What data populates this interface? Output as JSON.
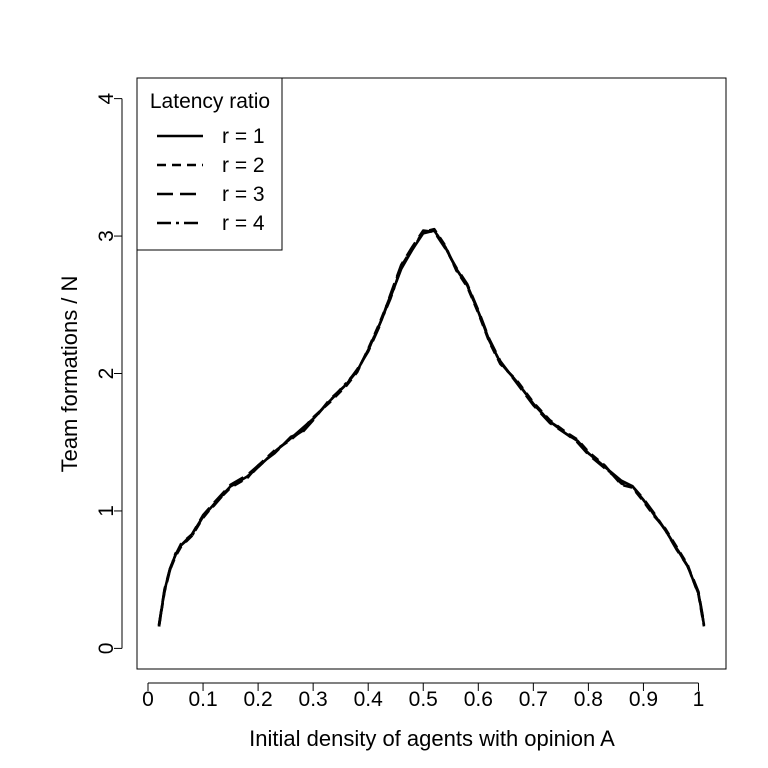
{
  "chart_data": {
    "type": "line",
    "title": "",
    "xlabel": "Initial density of agents with opinion A",
    "ylabel": "Team formations / N",
    "xlim": [
      -0.02,
      1.05
    ],
    "ylim": [
      -0.15,
      4.15
    ],
    "xticks": [
      0,
      0.1,
      0.2,
      0.3,
      0.4,
      0.5,
      0.6,
      0.7,
      0.8,
      0.9,
      1
    ],
    "xtick_labels": [
      "0",
      "0.1",
      "0.2",
      "0.3",
      "0.4",
      "0.5",
      "0.6",
      "0.7",
      "0.8",
      "0.9",
      "1"
    ],
    "yticks": [
      0,
      1,
      2,
      3,
      4
    ],
    "ytick_labels": [
      "0",
      "1",
      "2",
      "3",
      "4"
    ],
    "grid": false,
    "legend": {
      "title": "Latency ratio",
      "position": "top-left",
      "entries": [
        "r = 1",
        "r = 2",
        "r = 3",
        "r = 4"
      ]
    },
    "x": [
      0.02,
      0.03,
      0.04,
      0.05,
      0.06,
      0.08,
      0.1,
      0.12,
      0.15,
      0.18,
      0.2,
      0.23,
      0.26,
      0.28,
      0.3,
      0.33,
      0.36,
      0.38,
      0.4,
      0.42,
      0.44,
      0.46,
      0.48,
      0.5,
      0.52,
      0.54,
      0.56,
      0.58,
      0.6,
      0.62,
      0.64,
      0.67,
      0.7,
      0.73,
      0.76,
      0.78,
      0.8,
      0.83,
      0.86,
      0.88,
      0.9,
      0.92,
      0.94,
      0.96,
      0.98,
      0.99,
      1.0,
      1.01
    ],
    "series": [
      {
        "name": "r = 1",
        "dash": "solid",
        "values": [
          0.17,
          0.42,
          0.58,
          0.68,
          0.75,
          0.83,
          0.96,
          1.05,
          1.18,
          1.25,
          1.32,
          1.43,
          1.53,
          1.6,
          1.67,
          1.8,
          1.92,
          2.02,
          2.17,
          2.35,
          2.55,
          2.76,
          2.9,
          3.02,
          3.04,
          2.92,
          2.76,
          2.64,
          2.45,
          2.24,
          2.08,
          1.94,
          1.78,
          1.65,
          1.56,
          1.51,
          1.42,
          1.32,
          1.22,
          1.18,
          1.08,
          0.97,
          0.86,
          0.73,
          0.6,
          0.5,
          0.4,
          0.17
        ]
      },
      {
        "name": "r = 2",
        "dash": "short-dash",
        "values": [
          0.16,
          0.41,
          0.57,
          0.67,
          0.74,
          0.82,
          0.95,
          1.05,
          1.17,
          1.24,
          1.33,
          1.44,
          1.52,
          1.59,
          1.68,
          1.79,
          1.91,
          2.01,
          2.18,
          2.36,
          2.56,
          2.78,
          2.91,
          3.03,
          3.05,
          2.93,
          2.75,
          2.63,
          2.44,
          2.23,
          2.07,
          1.95,
          1.79,
          1.66,
          1.57,
          1.52,
          1.43,
          1.33,
          1.19,
          1.17,
          1.07,
          0.96,
          0.87,
          0.74,
          0.61,
          0.5,
          0.39,
          0.16
        ]
      },
      {
        "name": "r = 3",
        "dash": "long-dash",
        "values": [
          0.17,
          0.43,
          0.58,
          0.68,
          0.76,
          0.83,
          0.97,
          1.06,
          1.19,
          1.26,
          1.33,
          1.42,
          1.54,
          1.57,
          1.66,
          1.81,
          1.92,
          2.03,
          2.16,
          2.34,
          2.57,
          2.79,
          2.92,
          3.04,
          3.03,
          2.91,
          2.77,
          2.65,
          2.46,
          2.25,
          2.09,
          1.93,
          1.77,
          1.64,
          1.56,
          1.5,
          1.41,
          1.31,
          1.21,
          1.18,
          1.09,
          0.98,
          0.86,
          0.72,
          0.6,
          0.51,
          0.41,
          0.18
        ]
      },
      {
        "name": "r = 4",
        "dash": "dash-dot",
        "values": [
          0.16,
          0.42,
          0.57,
          0.69,
          0.75,
          0.82,
          0.96,
          1.04,
          1.18,
          1.24,
          1.32,
          1.43,
          1.53,
          1.58,
          1.67,
          1.8,
          1.93,
          2.02,
          2.17,
          2.35,
          2.54,
          2.77,
          2.9,
          3.03,
          3.04,
          2.92,
          2.76,
          2.64,
          2.45,
          2.24,
          2.08,
          1.94,
          1.78,
          1.65,
          1.57,
          1.51,
          1.42,
          1.32,
          1.2,
          1.17,
          1.08,
          0.97,
          0.86,
          0.73,
          0.6,
          0.5,
          0.4,
          0.17
        ]
      }
    ]
  }
}
